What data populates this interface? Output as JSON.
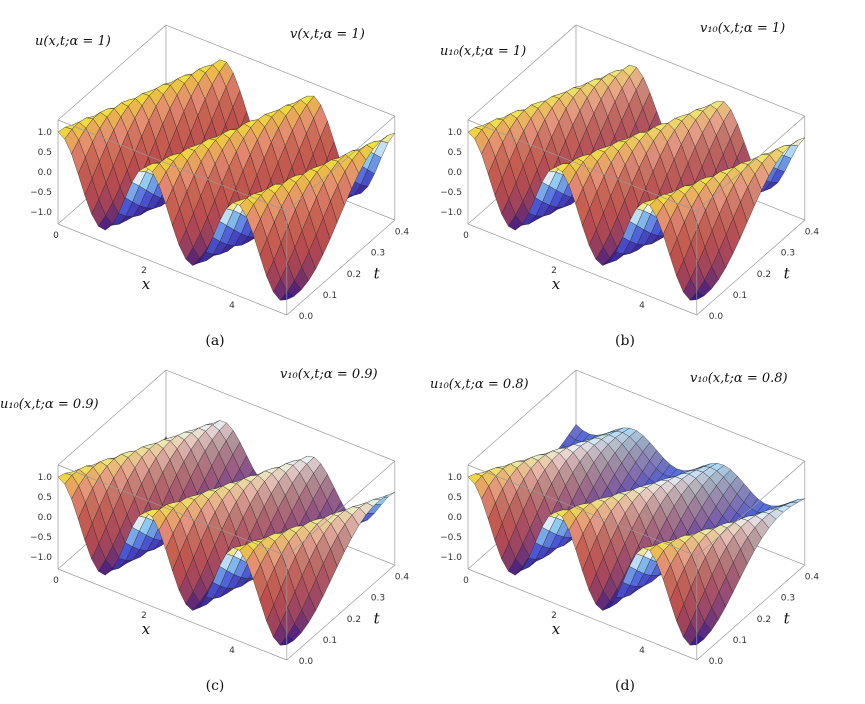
{
  "panels": [
    {
      "caption": "(a)",
      "u_label": "u(x,t;α = 1)",
      "v_label": "v(x,t;α = 1)"
    },
    {
      "caption": "(b)",
      "u_label": "u₁₀(x,t;α = 1)",
      "v_label": "v₁₀(x,t;α = 1)"
    },
    {
      "caption": "(c)",
      "u_label": "u₁₀(x,t;α = 0.9)",
      "v_label": "v₁₀(x,t;α = 0.9)"
    },
    {
      "caption": "(d)",
      "u_label": "u₁₀(x,t;α = 0.8)",
      "v_label": "v₁₀(x,t;α = 0.8)"
    }
  ],
  "z_ticks": [
    "1.0",
    "0.5",
    "0.0",
    "−0.5",
    "−1.0"
  ],
  "x_ticks": [
    "0",
    "2",
    "4"
  ],
  "t_ticks": [
    "0.0",
    "0.1",
    "0.2",
    "0.3",
    "0.4"
  ],
  "x_axis_label": "x",
  "t_axis_label": "t"
}
